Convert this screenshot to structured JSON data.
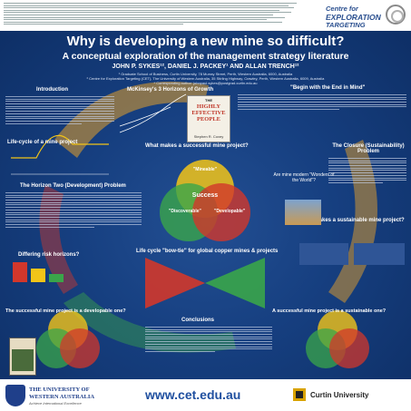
{
  "header": {
    "logo_line1": "Centre for",
    "logo_line2": "EXPLORATION",
    "logo_line3": "TARGETING"
  },
  "title": "Why is developing a new mine so difficult?",
  "subtitle": "A conceptual exploration of the management strategy literature",
  "authors": "JOHN P. SYKES¹², DANIEL J. PACKEY¹ AND ALLAN TRENCH¹²",
  "affiliations": [
    "¹ Graduate School of Business, Curtin University, 78 Murray Street, Perth, Western Australia, 6000, Australia",
    "² Centre for Exploration Targeting (CET), The University of Western Australia, 35 Stirling Highway, Crawley, Perth, Western Australia, 6009, Australia",
    "* Corresponding author: johnpaul.sykes@postgrad.curtin.edu.au"
  ],
  "sections": {
    "introduction": "Introduction",
    "horizons": "McKinsey's 3 Horizons of Growth",
    "begin_end": "\"Begin with the End in Mind\"",
    "lifecycle": "Life-cycle of a mine project",
    "successful": "What makes a successful mine project?",
    "closure": "The Closure (Sustainability) Problem",
    "horizon_two": "The Horizon Two (Development) Problem",
    "sustainable": "What makes a sustainable mine project?",
    "bowtie": "Life cycle \"bow-tie\" for global copper mines & projects",
    "risk": "Differing risk horizons?",
    "conclusions": "Conclusions",
    "developable_q": "The successful mine project is a developable one?",
    "sustainable_q": "A successful mine project is a sustainable one?"
  },
  "venn": {
    "success": "Success",
    "mineable": "\"Mineable\"",
    "discoverable": "\"Discoverable\"",
    "developable": "\"Developable\""
  },
  "book": {
    "top": "THE",
    "title": "HIGHLY EFFECTIVE PEOPLE",
    "author": "Stephen R. Covey"
  },
  "wonders_label": "Are mine modern \"Wonders of the World\"?",
  "footer": {
    "uwa_line1": "THE UNIVERSITY OF",
    "uwa_line2": "WESTERN AUSTRALIA",
    "uwa_tag": "Achieve International Excellence",
    "url": "www.cet.edu.au",
    "curtin": "Curtin University"
  },
  "colors": {
    "background": "#163f80",
    "venn_yellow": "#f2c418",
    "venn_green": "#3aa54a",
    "venn_red": "#d2372b",
    "accent_orange": "#e6a02a"
  }
}
